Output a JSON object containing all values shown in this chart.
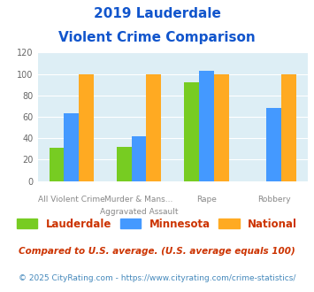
{
  "title_line1": "2019 Lauderdale",
  "title_line2": "Violent Crime Comparison",
  "top_labels": [
    "",
    "Murder & Mans...",
    "",
    ""
  ],
  "bottom_labels": [
    "All Violent Crime",
    "Aggravated Assault",
    "Rape",
    "Robbery"
  ],
  "lauderdale": [
    31,
    32,
    92,
    0
  ],
  "minnesota": [
    63,
    42,
    103,
    68
  ],
  "national": [
    100,
    100,
    100,
    100
  ],
  "lauderdale_color": "#77cc22",
  "minnesota_color": "#4499ff",
  "national_color": "#ffaa22",
  "ylim": [
    0,
    120
  ],
  "yticks": [
    0,
    20,
    40,
    60,
    80,
    100,
    120
  ],
  "plot_bg": "#ddeef5",
  "title_color": "#1155cc",
  "footnote1": "Compared to U.S. average. (U.S. average equals 100)",
  "footnote2": "© 2025 CityRating.com - https://www.cityrating.com/crime-statistics/",
  "footnote1_color": "#cc3300",
  "footnote2_color": "#4488bb",
  "legend_text_color": "#cc3300"
}
